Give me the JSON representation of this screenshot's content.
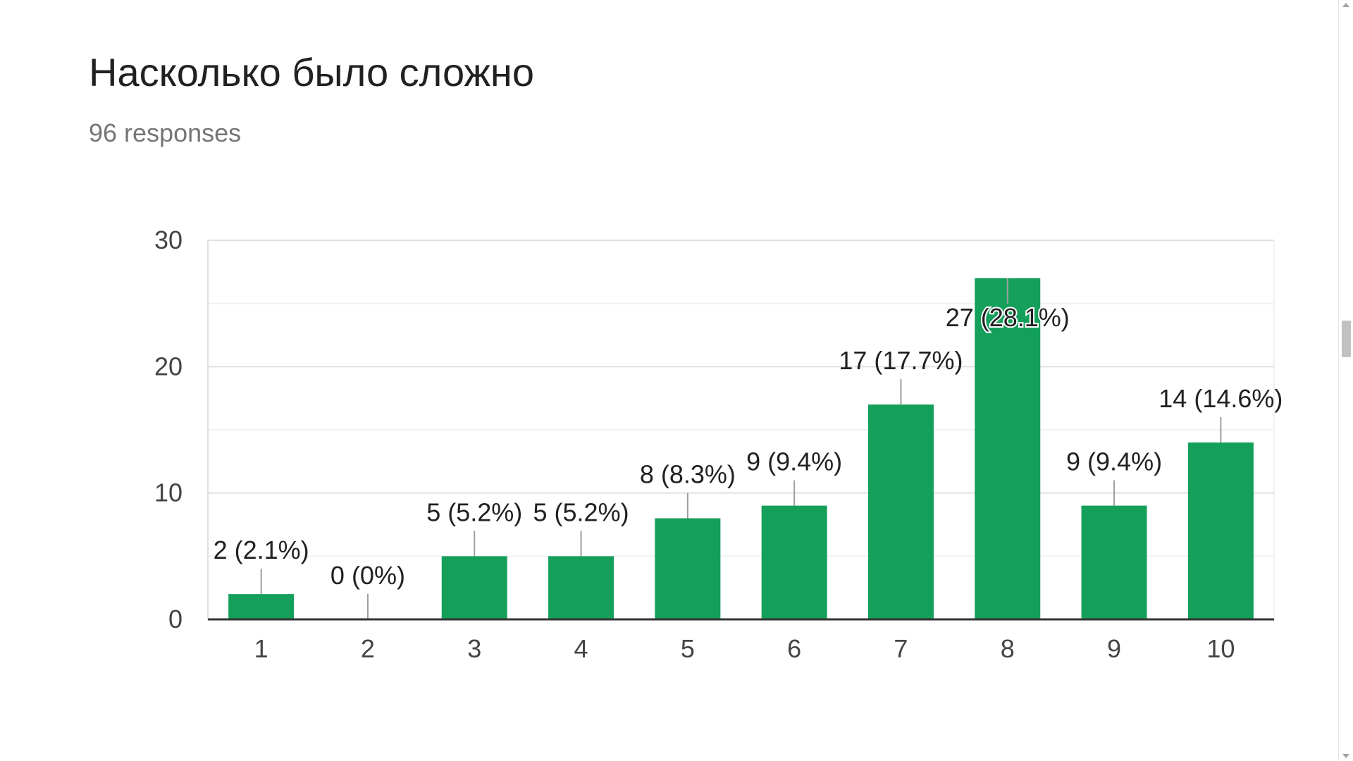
{
  "header": {
    "title": "Насколько было сложно",
    "responses": "96 responses"
  },
  "colors": {
    "bar": "#14a05a",
    "axis": "#333333",
    "grid_major": "#e0e0e0",
    "grid_minor": "#f1f1f1",
    "label": "#212121",
    "tick": "#444444",
    "leader": "#9e9e9e"
  },
  "chart_data": {
    "type": "bar",
    "title": "Насколько было сложно",
    "subtitle": "96 responses",
    "categories": [
      "1",
      "2",
      "3",
      "4",
      "5",
      "6",
      "7",
      "8",
      "9",
      "10"
    ],
    "values": [
      2,
      0,
      5,
      5,
      8,
      9,
      17,
      27,
      9,
      14
    ],
    "data_labels": [
      "2 (2.1%)",
      "0 (0%)",
      "5 (5.2%)",
      "5 (5.2%)",
      "8 (8.3%)",
      "9 (9.4%)",
      "17 (17.7%)",
      "27 (28.1%)",
      "9 (9.4%)",
      "14 (14.6%)"
    ],
    "y_ticks": [
      "0",
      "10",
      "20",
      "30"
    ],
    "ylim": [
      0,
      30
    ],
    "grid": true,
    "legend": "none"
  }
}
